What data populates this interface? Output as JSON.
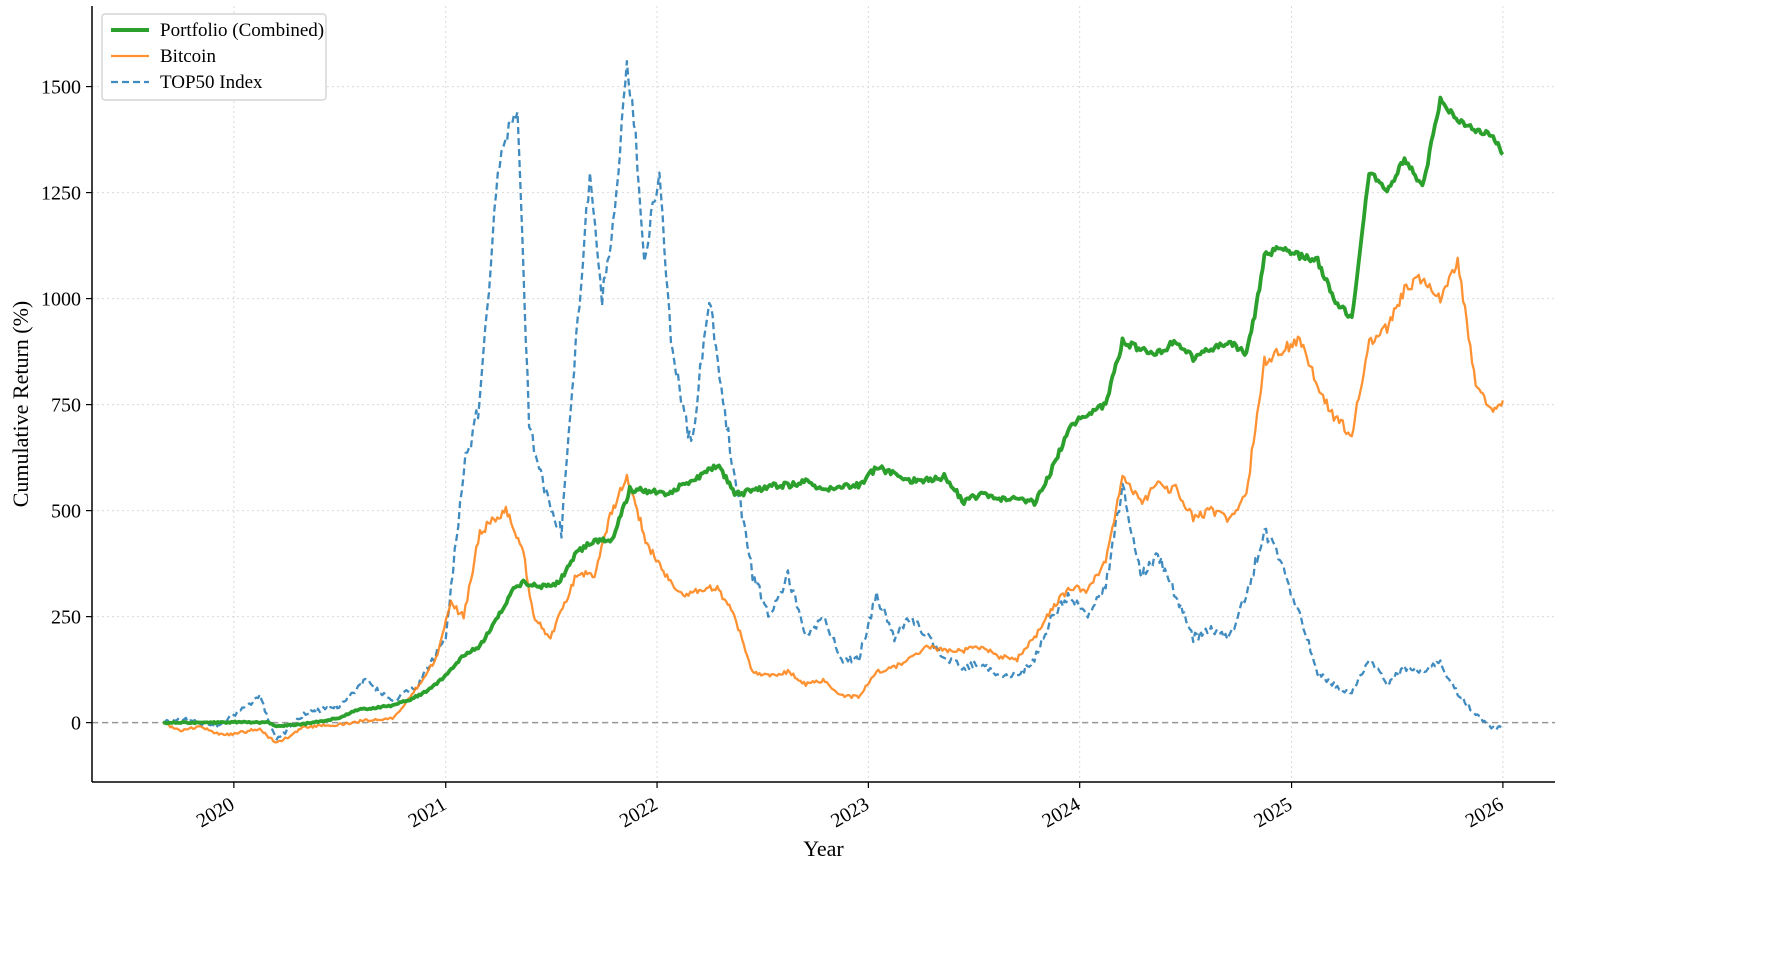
{
  "chart_data": {
    "type": "line",
    "title": "",
    "xlabel": "Year",
    "ylabel": "Cumulative Return (%)",
    "x_ticks": [
      "2020",
      "2021",
      "2022",
      "2023",
      "2024",
      "2025",
      "2026"
    ],
    "y_ticks": [
      "0",
      "250",
      "500",
      "750",
      "1000",
      "1250",
      "1500"
    ],
    "xlim": [
      "2019-05-01",
      "2026-04-01"
    ],
    "ylim": [
      -140,
      1690
    ],
    "grid": true,
    "legend_position": "top-left",
    "zero_reference_line": 0,
    "colors": {
      "portfolio": "#2ca02c",
      "bitcoin": "#ff7f0e",
      "top50": "#1f77b4"
    },
    "series": [
      {
        "name": "Portfolio (Combined)",
        "key": "portfolio",
        "style": "solid",
        "points": [
          [
            "2019-09-01",
            0
          ],
          [
            "2019-12-01",
            0
          ],
          [
            "2020-01-15",
            2
          ],
          [
            "2020-03-01",
            0
          ],
          [
            "2020-03-15",
            -8
          ],
          [
            "2020-05-01",
            -3
          ],
          [
            "2020-07-01",
            10
          ],
          [
            "2020-08-01",
            30
          ],
          [
            "2020-10-01",
            40
          ],
          [
            "2020-11-01",
            55
          ],
          [
            "2020-12-01",
            75
          ],
          [
            "2021-01-01",
            110
          ],
          [
            "2021-02-01",
            160
          ],
          [
            "2021-03-01",
            180
          ],
          [
            "2021-04-01",
            250
          ],
          [
            "2021-05-01",
            320
          ],
          [
            "2021-05-15",
            330
          ],
          [
            "2021-06-15",
            320
          ],
          [
            "2021-07-15",
            330
          ],
          [
            "2021-08-15",
            400
          ],
          [
            "2021-09-15",
            430
          ],
          [
            "2021-10-15",
            430
          ],
          [
            "2021-11-15",
            550
          ],
          [
            "2021-12-15",
            545
          ],
          [
            "2022-01-15",
            540
          ],
          [
            "2022-02-15",
            560
          ],
          [
            "2022-03-15",
            580
          ],
          [
            "2022-04-15",
            610
          ],
          [
            "2022-05-15",
            540
          ],
          [
            "2022-06-15",
            545
          ],
          [
            "2022-07-15",
            560
          ],
          [
            "2022-08-15",
            560
          ],
          [
            "2022-09-15",
            570
          ],
          [
            "2022-10-15",
            550
          ],
          [
            "2022-11-15",
            555
          ],
          [
            "2022-12-15",
            560
          ],
          [
            "2023-01-15",
            600
          ],
          [
            "2023-02-15",
            590
          ],
          [
            "2023-03-15",
            570
          ],
          [
            "2023-04-15",
            575
          ],
          [
            "2023-05-15",
            580
          ],
          [
            "2023-06-15",
            520
          ],
          [
            "2023-07-15",
            540
          ],
          [
            "2023-08-15",
            525
          ],
          [
            "2023-09-15",
            530
          ],
          [
            "2023-10-15",
            520
          ],
          [
            "2023-11-15",
            600
          ],
          [
            "2023-12-15",
            700
          ],
          [
            "2024-01-15",
            725
          ],
          [
            "2024-02-15",
            750
          ],
          [
            "2024-03-15",
            900
          ],
          [
            "2024-04-15",
            880
          ],
          [
            "2024-05-15",
            870
          ],
          [
            "2024-06-15",
            900
          ],
          [
            "2024-07-15",
            860
          ],
          [
            "2024-08-15",
            880
          ],
          [
            "2024-09-15",
            900
          ],
          [
            "2024-10-15",
            870
          ],
          [
            "2024-11-01",
            980
          ],
          [
            "2024-11-15",
            1100
          ],
          [
            "2024-12-15",
            1120
          ],
          [
            "2025-01-15",
            1100
          ],
          [
            "2025-02-15",
            1090
          ],
          [
            "2025-03-15",
            1000
          ],
          [
            "2025-04-15",
            950
          ],
          [
            "2025-05-15",
            1300
          ],
          [
            "2025-06-15",
            1250
          ],
          [
            "2025-07-15",
            1330
          ],
          [
            "2025-08-15",
            1260
          ],
          [
            "2025-09-15",
            1470
          ],
          [
            "2025-10-15",
            1420
          ],
          [
            "2025-11-15",
            1400
          ],
          [
            "2025-12-15",
            1380
          ],
          [
            "2026-01-01",
            1340
          ]
        ]
      },
      {
        "name": "Bitcoin",
        "key": "bitcoin",
        "style": "solid",
        "points": [
          [
            "2019-09-01",
            0
          ],
          [
            "2019-10-01",
            -20
          ],
          [
            "2019-11-01",
            -10
          ],
          [
            "2019-12-15",
            -30
          ],
          [
            "2020-02-15",
            -15
          ],
          [
            "2020-03-15",
            -50
          ],
          [
            "2020-05-01",
            -10
          ],
          [
            "2020-07-01",
            -5
          ],
          [
            "2020-08-15",
            5
          ],
          [
            "2020-10-01",
            10
          ],
          [
            "2020-11-01",
            60
          ],
          [
            "2020-12-15",
            150
          ],
          [
            "2021-01-10",
            280
          ],
          [
            "2021-02-01",
            250
          ],
          [
            "2021-03-01",
            450
          ],
          [
            "2021-04-15",
            500
          ],
          [
            "2021-05-15",
            400
          ],
          [
            "2021-06-01",
            250
          ],
          [
            "2021-07-01",
            200
          ],
          [
            "2021-08-15",
            350
          ],
          [
            "2021-09-15",
            350
          ],
          [
            "2021-10-15",
            500
          ],
          [
            "2021-11-10",
            580
          ],
          [
            "2021-12-15",
            420
          ],
          [
            "2022-01-15",
            350
          ],
          [
            "2022-02-15",
            300
          ],
          [
            "2022-03-15",
            310
          ],
          [
            "2022-04-15",
            320
          ],
          [
            "2022-05-15",
            250
          ],
          [
            "2022-06-15",
            120
          ],
          [
            "2022-07-15",
            110
          ],
          [
            "2022-08-15",
            120
          ],
          [
            "2022-09-15",
            90
          ],
          [
            "2022-10-15",
            100
          ],
          [
            "2022-11-15",
            65
          ],
          [
            "2022-12-15",
            60
          ],
          [
            "2023-01-15",
            120
          ],
          [
            "2023-02-15",
            130
          ],
          [
            "2023-03-15",
            150
          ],
          [
            "2023-04-15",
            180
          ],
          [
            "2023-05-15",
            170
          ],
          [
            "2023-06-15",
            170
          ],
          [
            "2023-07-15",
            180
          ],
          [
            "2023-08-15",
            155
          ],
          [
            "2023-09-15",
            150
          ],
          [
            "2023-10-15",
            200
          ],
          [
            "2023-11-15",
            270
          ],
          [
            "2023-12-15",
            320
          ],
          [
            "2024-01-15",
            310
          ],
          [
            "2024-02-15",
            380
          ],
          [
            "2024-03-15",
            580
          ],
          [
            "2024-04-15",
            520
          ],
          [
            "2024-05-15",
            560
          ],
          [
            "2024-06-15",
            550
          ],
          [
            "2024-07-15",
            480
          ],
          [
            "2024-08-15",
            500
          ],
          [
            "2024-09-15",
            480
          ],
          [
            "2024-10-15",
            540
          ],
          [
            "2024-11-15",
            850
          ],
          [
            "2024-12-15",
            880
          ],
          [
            "2025-01-15",
            900
          ],
          [
            "2025-02-15",
            800
          ],
          [
            "2025-03-15",
            720
          ],
          [
            "2025-04-15",
            680
          ],
          [
            "2025-05-15",
            900
          ],
          [
            "2025-06-15",
            930
          ],
          [
            "2025-07-15",
            1020
          ],
          [
            "2025-08-15",
            1050
          ],
          [
            "2025-09-15",
            1000
          ],
          [
            "2025-10-15",
            1090
          ],
          [
            "2025-11-15",
            800
          ],
          [
            "2025-12-15",
            740
          ],
          [
            "2026-01-01",
            760
          ]
        ]
      },
      {
        "name": "TOP50 Index",
        "key": "top50",
        "style": "dashed",
        "points": [
          [
            "2019-09-01",
            0
          ],
          [
            "2019-10-01",
            10
          ],
          [
            "2019-12-01",
            -10
          ],
          [
            "2020-02-15",
            60
          ],
          [
            "2020-03-15",
            -40
          ],
          [
            "2020-05-01",
            20
          ],
          [
            "2020-07-01",
            40
          ],
          [
            "2020-08-15",
            100
          ],
          [
            "2020-10-01",
            50
          ],
          [
            "2020-11-15",
            90
          ],
          [
            "2021-01-01",
            200
          ],
          [
            "2021-02-01",
            600
          ],
          [
            "2021-03-01",
            750
          ],
          [
            "2021-04-01",
            1300
          ],
          [
            "2021-04-20",
            1400
          ],
          [
            "2021-05-05",
            1450
          ],
          [
            "2021-05-25",
            700
          ],
          [
            "2021-06-20",
            550
          ],
          [
            "2021-07-20",
            450
          ],
          [
            "2021-08-20",
            1000
          ],
          [
            "2021-09-07",
            1300
          ],
          [
            "2021-09-28",
            1000
          ],
          [
            "2021-10-20",
            1200
          ],
          [
            "2021-11-10",
            1550
          ],
          [
            "2021-11-25",
            1380
          ],
          [
            "2021-12-10",
            1100
          ],
          [
            "2022-01-05",
            1300
          ],
          [
            "2022-01-25",
            900
          ],
          [
            "2022-03-01",
            650
          ],
          [
            "2022-04-01",
            1000
          ],
          [
            "2022-05-01",
            700
          ],
          [
            "2022-06-15",
            350
          ],
          [
            "2022-07-15",
            250
          ],
          [
            "2022-08-15",
            350
          ],
          [
            "2022-09-15",
            200
          ],
          [
            "2022-10-15",
            250
          ],
          [
            "2022-11-15",
            150
          ],
          [
            "2022-12-15",
            150
          ],
          [
            "2023-01-15",
            300
          ],
          [
            "2023-02-15",
            200
          ],
          [
            "2023-03-15",
            250
          ],
          [
            "2023-04-15",
            200
          ],
          [
            "2023-05-15",
            150
          ],
          [
            "2023-06-15",
            130
          ],
          [
            "2023-07-15",
            140
          ],
          [
            "2023-08-15",
            110
          ],
          [
            "2023-09-15",
            110
          ],
          [
            "2023-10-15",
            150
          ],
          [
            "2023-11-15",
            250
          ],
          [
            "2023-12-15",
            300
          ],
          [
            "2024-01-15",
            250
          ],
          [
            "2024-02-15",
            320
          ],
          [
            "2024-03-15",
            560
          ],
          [
            "2024-04-15",
            350
          ],
          [
            "2024-05-15",
            400
          ],
          [
            "2024-06-15",
            300
          ],
          [
            "2024-07-15",
            200
          ],
          [
            "2024-08-15",
            220
          ],
          [
            "2024-09-15",
            200
          ],
          [
            "2024-10-15",
            300
          ],
          [
            "2024-11-15",
            450
          ],
          [
            "2024-12-15",
            380
          ],
          [
            "2025-01-15",
            250
          ],
          [
            "2025-02-15",
            120
          ],
          [
            "2025-03-15",
            90
          ],
          [
            "2025-04-15",
            70
          ],
          [
            "2025-05-15",
            150
          ],
          [
            "2025-06-15",
            90
          ],
          [
            "2025-07-15",
            130
          ],
          [
            "2025-08-15",
            120
          ],
          [
            "2025-09-15",
            140
          ],
          [
            "2025-10-15",
            70
          ],
          [
            "2025-11-15",
            20
          ],
          [
            "2025-12-15",
            -15
          ],
          [
            "2026-01-01",
            -10
          ]
        ]
      }
    ]
  }
}
